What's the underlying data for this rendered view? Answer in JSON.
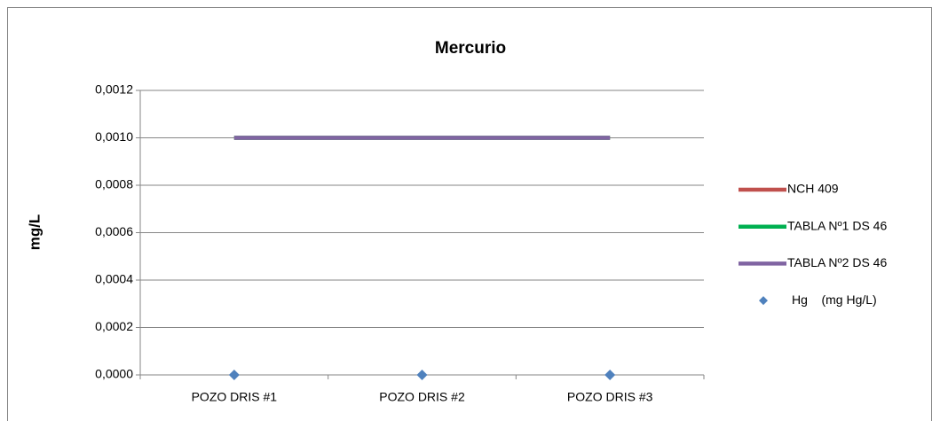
{
  "chart_data": {
    "type": "line",
    "title": "Mercurio",
    "y_label": "mg/L",
    "categories": [
      "POZO DRIS #1",
      "POZO DRIS #2",
      "POZO DRIS #3"
    ],
    "series": [
      {
        "name": "NCH 409",
        "color": "#c0504d",
        "type": "line",
        "values": [
          0.001,
          0.001,
          0.001
        ]
      },
      {
        "name": "TABLA Nº1 DS 46",
        "color": "#00b050",
        "type": "line",
        "values": [
          0.001,
          0.001,
          0.001
        ]
      },
      {
        "name": "TABLA Nº2 DS 46",
        "color": "#8064a2",
        "type": "line",
        "values": [
          0.001,
          0.001,
          0.001
        ]
      },
      {
        "name": "Hg    (mg Hg/L)",
        "color": "#4f81bd",
        "type": "scatter",
        "values": [
          0,
          0,
          0
        ]
      }
    ],
    "ylim": [
      0,
      0.0012
    ],
    "yticks": [
      {
        "value": 0,
        "label": "0,0000"
      },
      {
        "value": 0.0002,
        "label": "0,0002"
      },
      {
        "value": 0.0004,
        "label": "0,0004"
      },
      {
        "value": 0.0006,
        "label": "0,0006"
      },
      {
        "value": 0.0008,
        "label": "0,0008"
      },
      {
        "value": 0.001,
        "label": "0,0010"
      },
      {
        "value": 0.0012,
        "label": "0,0012"
      }
    ],
    "grid": true,
    "legend": "right"
  }
}
